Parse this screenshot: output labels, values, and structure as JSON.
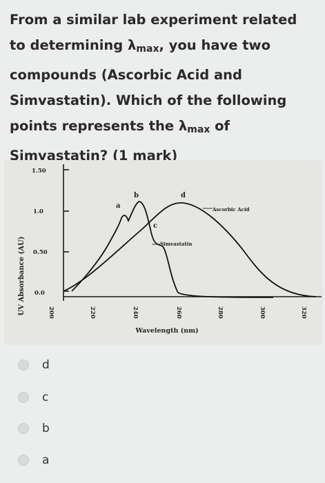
{
  "question": {
    "line1": "From a similar lab experiment related",
    "line2a": "to determining λ",
    "line2sub": "max",
    "line2b": ", you have two",
    "line3": "compounds (Ascorbic Acid and",
    "line4": "Simvastatin). Which of the following",
    "line5a": "points represents the λ",
    "line5sub": "max",
    "line5b": " of",
    "line6": "Simvastatin? (1 mark)"
  },
  "chart_data": {
    "type": "line",
    "ylabel": "UV Absorbance (AU)",
    "xlabel": "Wavelength (nm)",
    "y_ticks": [
      "1.50",
      "1.0",
      "0.50",
      "0.0"
    ],
    "x_ticks": [
      "200",
      "220",
      "240",
      "260",
      "280",
      "300",
      "320"
    ],
    "series": [
      {
        "name": "Ascorbic Acid",
        "color": "#1a1a1a"
      },
      {
        "name": "Simvastatin",
        "color": "#1a1a1a"
      }
    ],
    "point_labels": [
      "a",
      "b",
      "c",
      "d"
    ]
  },
  "options": [
    {
      "label": "d"
    },
    {
      "label": "c"
    },
    {
      "label": "b"
    },
    {
      "label": "a"
    }
  ]
}
